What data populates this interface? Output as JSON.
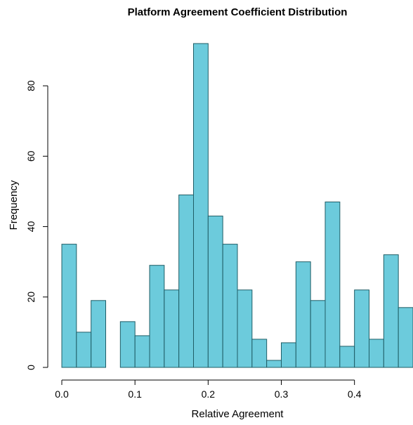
{
  "chart_data": {
    "type": "bar",
    "title": "Platform Agreement Coefficient Distribution",
    "xlabel": "Relative Agreement",
    "ylabel": "Frequency",
    "bin_width": 0.02,
    "bins": [
      {
        "x0": 0.0,
        "x1": 0.02,
        "count": 35
      },
      {
        "x0": 0.02,
        "x1": 0.04,
        "count": 10
      },
      {
        "x0": 0.04,
        "x1": 0.06,
        "count": 19
      },
      {
        "x0": 0.06,
        "x1": 0.08,
        "count": 0
      },
      {
        "x0": 0.08,
        "x1": 0.1,
        "count": 13
      },
      {
        "x0": 0.1,
        "x1": 0.12,
        "count": 9
      },
      {
        "x0": 0.12,
        "x1": 0.14,
        "count": 29
      },
      {
        "x0": 0.14,
        "x1": 0.16,
        "count": 22
      },
      {
        "x0": 0.16,
        "x1": 0.18,
        "count": 49
      },
      {
        "x0": 0.18,
        "x1": 0.2,
        "count": 92
      },
      {
        "x0": 0.2,
        "x1": 0.22,
        "count": 43
      },
      {
        "x0": 0.22,
        "x1": 0.24,
        "count": 35
      },
      {
        "x0": 0.24,
        "x1": 0.26,
        "count": 22
      },
      {
        "x0": 0.26,
        "x1": 0.28,
        "count": 8
      },
      {
        "x0": 0.28,
        "x1": 0.3,
        "count": 2
      },
      {
        "x0": 0.3,
        "x1": 0.32,
        "count": 7
      },
      {
        "x0": 0.32,
        "x1": 0.34,
        "count": 30
      },
      {
        "x0": 0.34,
        "x1": 0.36,
        "count": 19
      },
      {
        "x0": 0.36,
        "x1": 0.38,
        "count": 47
      },
      {
        "x0": 0.38,
        "x1": 0.4,
        "count": 6
      },
      {
        "x0": 0.4,
        "x1": 0.42,
        "count": 22
      },
      {
        "x0": 0.42,
        "x1": 0.44,
        "count": 8
      },
      {
        "x0": 0.44,
        "x1": 0.46,
        "count": 32
      },
      {
        "x0": 0.46,
        "x1": 0.48,
        "count": 17
      }
    ],
    "x_ticks": [
      {
        "value": 0.0,
        "label": "0.0"
      },
      {
        "value": 0.1,
        "label": "0.1"
      },
      {
        "value": 0.2,
        "label": "0.2"
      },
      {
        "value": 0.3,
        "label": "0.3"
      },
      {
        "value": 0.4,
        "label": "0.4"
      }
    ],
    "y_ticks": [
      {
        "value": 0,
        "label": "0"
      },
      {
        "value": 20,
        "label": "20"
      },
      {
        "value": 40,
        "label": "40"
      },
      {
        "value": 60,
        "label": "60"
      },
      {
        "value": 80,
        "label": "80"
      }
    ],
    "xlim": [
      0.0,
      0.48
    ],
    "ylim": [
      0,
      92
    ],
    "grid": false,
    "bar_color": "#6ccbdc",
    "bar_edge_color": "#1f5d66"
  }
}
